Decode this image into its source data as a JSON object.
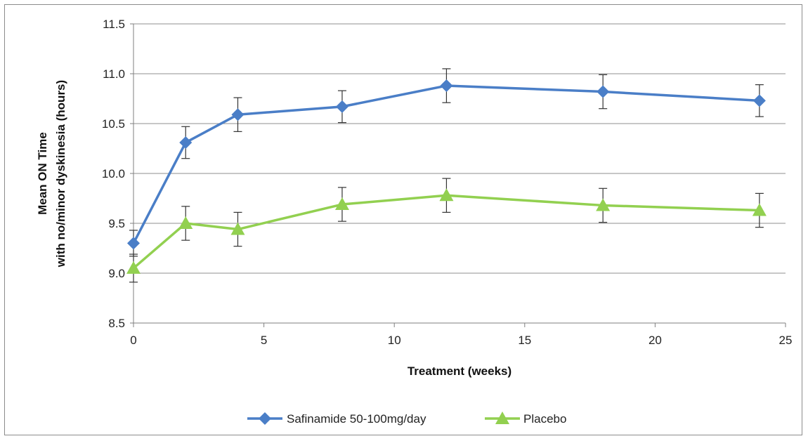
{
  "chart_data": {
    "type": "line",
    "title": "",
    "xlabel": "Treatment (weeks)",
    "ylabel_lines": [
      "Mean ON Time",
      "with no/minor dyskinesia (hours)"
    ],
    "xlim": [
      0,
      25
    ],
    "ylim": [
      8.5,
      11.5
    ],
    "x_ticks": [
      "0",
      "5",
      "10",
      "15",
      "20",
      "25"
    ],
    "y_ticks": [
      "8.5",
      "9.0",
      "9.5",
      "10.0",
      "10.5",
      "11.0",
      "11.5"
    ],
    "grid": "horizontal",
    "legend_position": "bottom",
    "series": [
      {
        "name": "Safinamide 50-100mg/day",
        "color": "#4a7ec7",
        "marker": "diamond",
        "x": [
          0,
          2,
          4,
          8,
          12,
          18,
          24
        ],
        "values": [
          9.3,
          10.31,
          10.59,
          10.67,
          10.88,
          10.82,
          10.73
        ],
        "error": [
          0.13,
          0.16,
          0.17,
          0.16,
          0.17,
          0.17,
          0.16
        ]
      },
      {
        "name": "Placebo",
        "color": "#92d050",
        "marker": "triangle",
        "x": [
          0,
          2,
          4,
          8,
          12,
          18,
          24
        ],
        "values": [
          9.05,
          9.5,
          9.44,
          9.69,
          9.78,
          9.68,
          9.63
        ],
        "error": [
          0.14,
          0.17,
          0.17,
          0.17,
          0.17,
          0.17,
          0.17
        ]
      }
    ]
  }
}
